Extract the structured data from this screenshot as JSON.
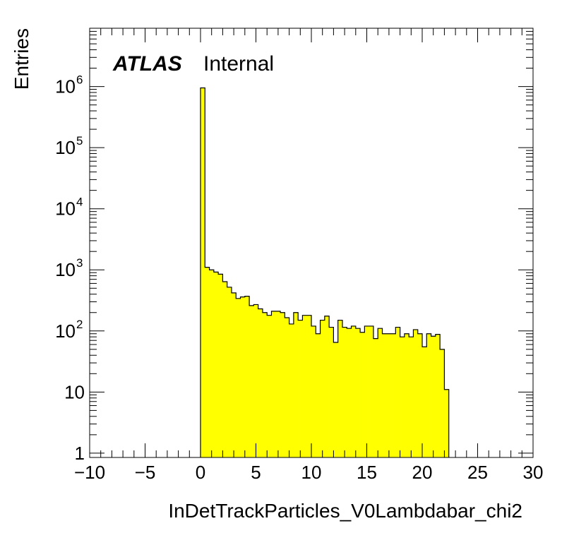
{
  "chart_data": {
    "type": "histogram",
    "xlabel": "InDetTrackParticles_V0Lambdabar_chi2",
    "ylabel": "Entries",
    "atlas_label": "ATLAS",
    "atlas_status": "Internal",
    "x_range": [
      -10,
      30
    ],
    "y_range": [
      0.85,
      9000000
    ],
    "y_scale": "log",
    "x_ticks": [
      -10,
      -5,
      0,
      5,
      10,
      15,
      20,
      25,
      30
    ],
    "x_tick_labels": [
      "−10",
      "−5",
      "0",
      "5",
      "10",
      "15",
      "20",
      "25",
      "30"
    ],
    "y_ticks": [
      1,
      10,
      100,
      1000,
      10000,
      100000,
      1000000
    ],
    "y_tick_base": "10",
    "y_tick_exponents": [
      "",
      "",
      "2",
      "3",
      "4",
      "5",
      "6"
    ],
    "y_tick_plain": [
      "1",
      "10",
      "",
      "",
      "",
      "",
      ""
    ],
    "bin_width": 0.4,
    "bins_start": 0,
    "values": [
      950000,
      1100,
      1000,
      920,
      850,
      640,
      520,
      420,
      340,
      360,
      370,
      260,
      270,
      230,
      200,
      180,
      210,
      210,
      200,
      165,
      130,
      200,
      150,
      180,
      180,
      120,
      90,
      150,
      175,
      115,
      65,
      150,
      115,
      110,
      120,
      110,
      95,
      120,
      120,
      75,
      110,
      90,
      90,
      90,
      115,
      80,
      90,
      80,
      105,
      90,
      55,
      90,
      82,
      88,
      50,
      11
    ],
    "colors": {
      "fill": "#ffff00",
      "line": "#000000"
    }
  }
}
